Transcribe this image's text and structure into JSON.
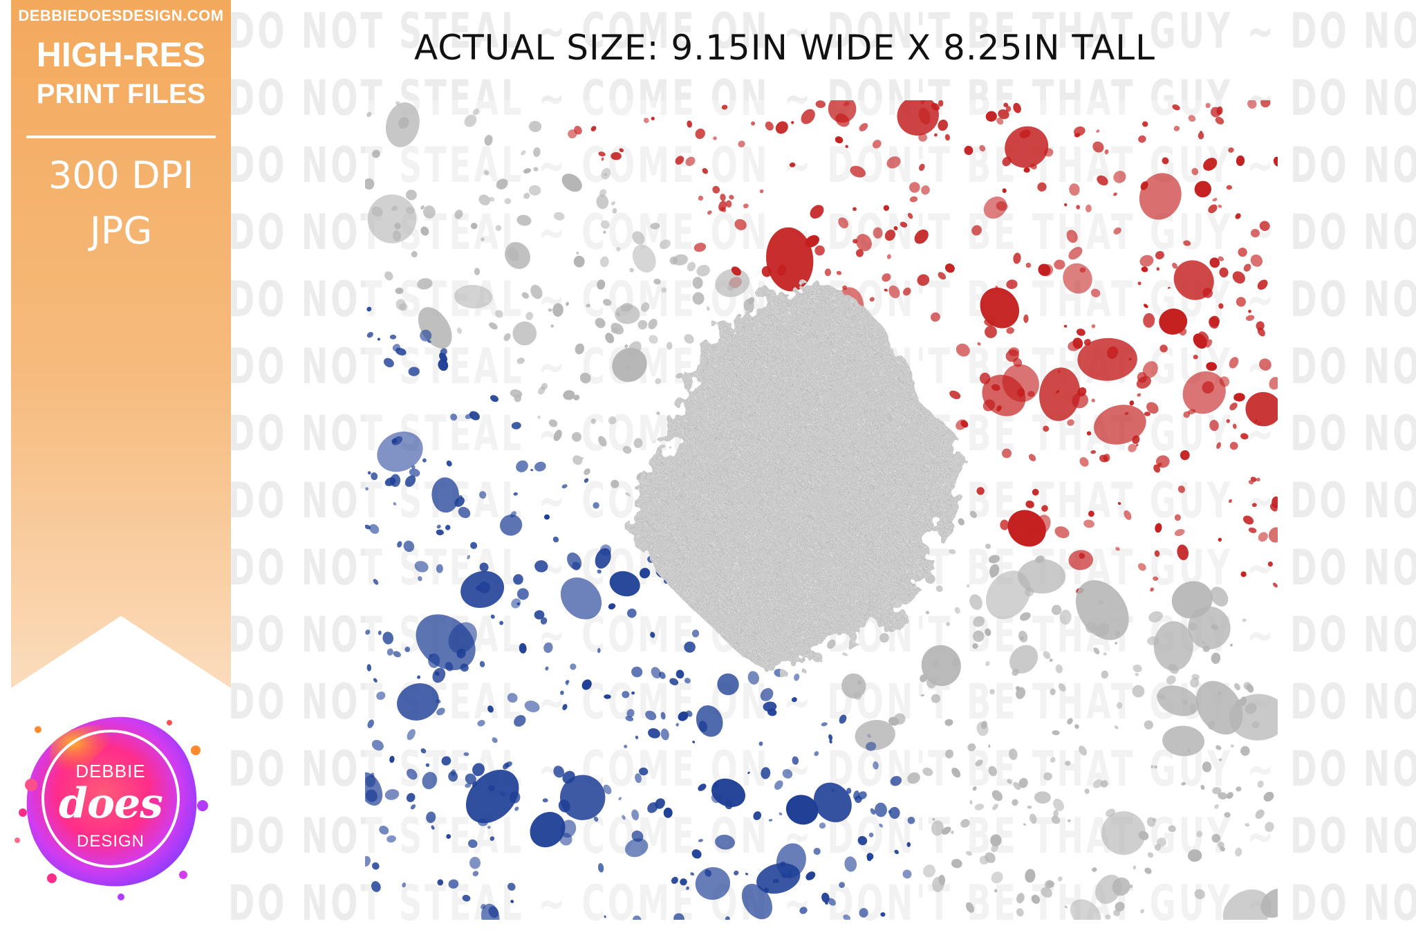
{
  "ribbon": {
    "site_url": "DEBBIEDOESDESIGN.COM",
    "headline": "HIGH-RES",
    "subheadline": "PRINT FILES",
    "resolution": "300 DPI",
    "file_format": "JPG",
    "color": "#f3a95c"
  },
  "logo": {
    "line_top": "DEBBIE",
    "line_mid": "does",
    "line_bottom": "DESIGN",
    "colors": [
      "#ff2d8a",
      "#ff8a2b",
      "#b23cff",
      "#ff4f4f"
    ]
  },
  "caption": {
    "size_text": "ACTUAL SIZE: 9.15IN WIDE X 8.25IN TALL"
  },
  "watermark": {
    "text": "DO NOT STEAL ~ COME ON ~ DON'T BE THAT GUY ~ DO NOT STEAL",
    "color": "#ececec"
  },
  "artwork": {
    "description_colors": {
      "red": "#c41e1e",
      "silver": "#b4b4b4",
      "blue": "#1e3f96"
    }
  }
}
